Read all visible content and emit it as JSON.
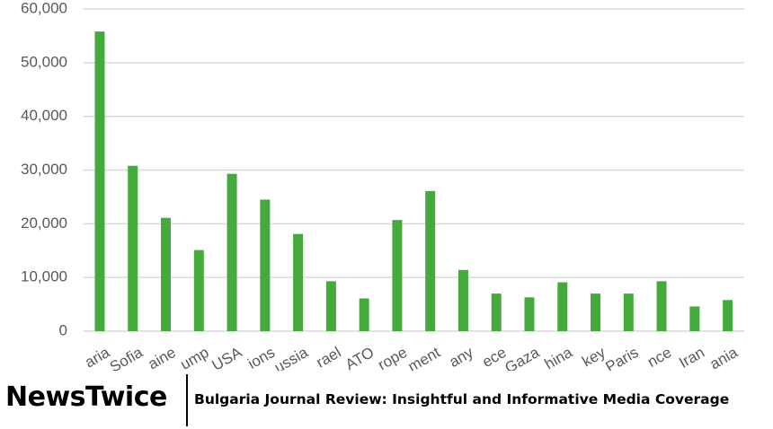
{
  "chart_data": {
    "type": "bar",
    "categories": [
      "aria",
      "Sofia",
      "aine",
      "ump",
      "USA",
      "ions",
      "ussia",
      "rael",
      "ATO",
      "rope",
      "ment",
      "any",
      "ece",
      "Gaza",
      "hina",
      "key",
      "Paris",
      "nce",
      "Iran",
      "ania"
    ],
    "values": [
      55800,
      30800,
      21100,
      15100,
      29300,
      24500,
      18100,
      9300,
      6100,
      20700,
      26100,
      11400,
      7000,
      6300,
      9100,
      7000,
      7000,
      9300,
      4600,
      5800
    ],
    "color": "#44aa3c",
    "ylim": [
      0,
      60000
    ],
    "yticks": [
      0,
      {
        "value": 10000,
        "label": "10,000"
      },
      {
        "value": 20000,
        "label": "20,000"
      },
      {
        "value": 30000,
        "label": "30,000"
      },
      {
        "value": 40000,
        "label": "40,000"
      },
      {
        "value": 50000,
        "label": "50,000"
      },
      {
        "value": 60000,
        "label": "60,000"
      }
    ],
    "grid": true
  },
  "banner": {
    "brand": "NewsTwice",
    "tagline": "Bulgaria Journal Review: Insightful and Informative Media Coverage"
  }
}
